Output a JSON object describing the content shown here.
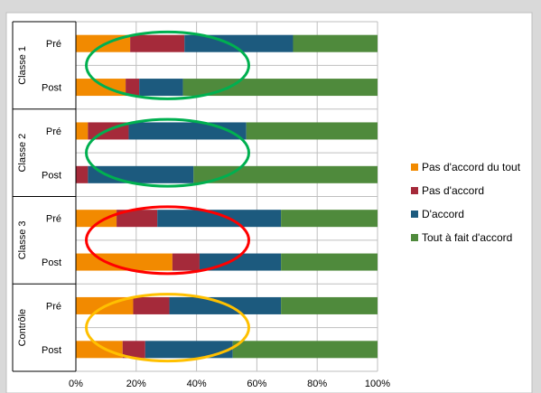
{
  "colors": {
    "outer_bg": "#d9d9d9",
    "plot_bg": "#ffffff",
    "grid": "#bfbfbf",
    "circle_green": "#00b050",
    "circle_red": "#ff0000",
    "circle_yellow": "#ffc000"
  },
  "chart_data": {
    "type": "bar",
    "orientation": "horizontal",
    "stacked": "percent",
    "xlim": [
      0,
      100
    ],
    "x_ticks": [
      "0%",
      "20%",
      "40%",
      "60%",
      "80%",
      "100%"
    ],
    "grid": true,
    "legend_position": "right",
    "groups": [
      {
        "label": "Classe 1",
        "rows": [
          "Pré",
          "Post"
        ]
      },
      {
        "label": "Classe 2",
        "rows": [
          "Pré",
          "Post"
        ]
      },
      {
        "label": "Classe 3",
        "rows": [
          "Pré",
          "Post"
        ]
      },
      {
        "label": "Contrôle",
        "rows": [
          "Pré",
          "Post"
        ]
      }
    ],
    "categories": [
      "Classe 1 Pré",
      "Classe 1 Post",
      "Classe 2 Pré",
      "Classe 2 Post",
      "Classe 3 Pré",
      "Classe 3 Post",
      "Contrôle Pré",
      "Contrôle Post"
    ],
    "series": [
      {
        "name": "Pas d'accord du tout",
        "color": "#f28a00",
        "values": [
          18,
          16.5,
          4,
          0,
          13.5,
          32,
          19,
          15.5
        ]
      },
      {
        "name": "Pas d'accord",
        "color": "#a52a3a",
        "values": [
          18,
          4.5,
          13.5,
          4,
          13.5,
          9,
          12,
          7.5
        ]
      },
      {
        "name": "D'accord",
        "color": "#1c5a7e",
        "values": [
          36,
          14.5,
          39,
          35,
          41,
          27,
          37,
          29
        ]
      },
      {
        "name": "Tout à fait d'accord",
        "color": "#4f8a3c",
        "values": [
          28,
          64.5,
          43.5,
          61,
          32,
          32,
          32,
          48
        ]
      }
    ],
    "highlights": [
      {
        "group": "Classe 1",
        "color": "#00b050"
      },
      {
        "group": "Classe 2",
        "color": "#00b050"
      },
      {
        "group": "Classe 3",
        "color": "#ff0000"
      },
      {
        "group": "Contrôle",
        "color": "#ffc000"
      }
    ]
  }
}
